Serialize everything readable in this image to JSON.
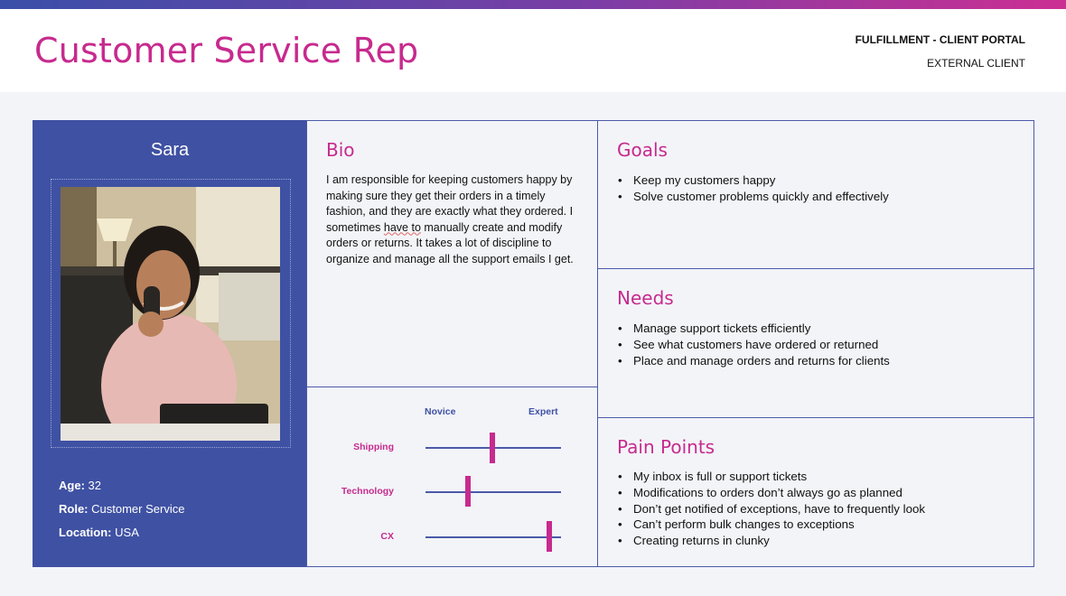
{
  "header": {
    "title": "Customer Service Rep",
    "portal": "FULFILLMENT - CLIENT PORTAL",
    "client_type": "EXTERNAL CLIENT"
  },
  "profile": {
    "name": "Sara",
    "age_label": "Age",
    "age": "32",
    "role_label": "Role",
    "role": "Customer Service",
    "location_label": "Location",
    "location": "USA"
  },
  "bio": {
    "heading": "Bio",
    "text_1": "I am responsible for keeping customers happy by making sure they get their orders in a timely fashion, and they are exactly what they ordered. I sometimes ",
    "text_squiggle": "have to",
    "text_2": " manually create and modify orders or returns. It takes a lot of discipline to organize and manage all the support emails I get."
  },
  "skills": {
    "novice_label": "Novice",
    "expert_label": "Expert",
    "items": [
      {
        "label": "Shipping",
        "level": 0.49
      },
      {
        "label": "Technology",
        "level": 0.31
      },
      {
        "label": "CX",
        "level": 0.91
      }
    ]
  },
  "goals": {
    "heading": "Goals",
    "items": [
      "Keep my customers happy",
      "Solve customer problems quickly and effectively"
    ]
  },
  "needs": {
    "heading": "Needs",
    "items": [
      "Manage support tickets efficiently",
      "See what customers have ordered or returned",
      "Place and manage orders and returns for clients"
    ]
  },
  "pain_points": {
    "heading": "Pain Points",
    "items": [
      "My inbox is full or support tickets",
      "Modifications to orders don’t always go as planned",
      "Don’t get notified of exceptions, have to frequently look",
      "Can’t perform bulk changes to exceptions",
      "Creating returns in clunky"
    ]
  },
  "colors": {
    "accent": "#c72a8e",
    "brand": "#3f51a3"
  }
}
